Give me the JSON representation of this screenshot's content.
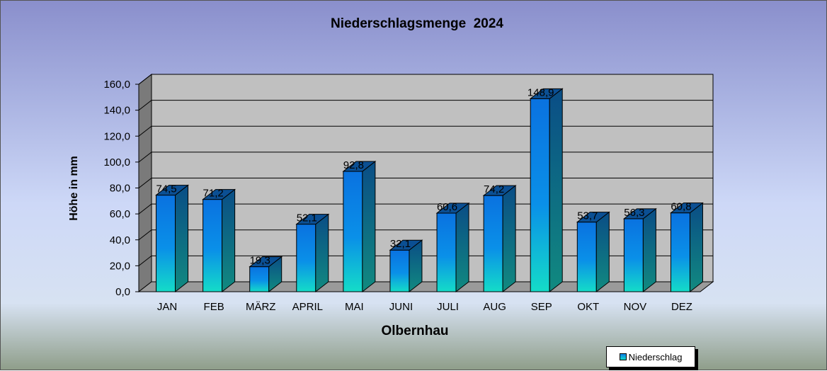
{
  "chart_data": {
    "type": "bar",
    "title": "Niederschlagsmenge  2024",
    "xlabel": "Olbernhau",
    "ylabel": "Höhe in mm",
    "categories": [
      "JAN",
      "FEB",
      "MÄRZ",
      "APRIL",
      "MAI",
      "JUNI",
      "JULI",
      "AUG",
      "SEP",
      "OKT",
      "NOV",
      "DEZ"
    ],
    "series": [
      {
        "name": "Niederschlag",
        "values": [
          74.5,
          71.2,
          19.3,
          52.1,
          92.8,
          32.1,
          60.6,
          74.2,
          148.9,
          53.7,
          56.3,
          60.8
        ],
        "labels": [
          "74,5",
          "71,2",
          "19,3",
          "52,1",
          "92,8",
          "32,1",
          "60,6",
          "74,2",
          "148,9",
          "53,7",
          "56,3",
          "60,8"
        ]
      }
    ],
    "y_ticks": [
      "0,0",
      "20,0",
      "40,0",
      "60,0",
      "80,0",
      "100,0",
      "120,0",
      "140,0",
      "160,0"
    ],
    "ylim": [
      0,
      160
    ],
    "grid": true,
    "legend_position": "bottom-right",
    "colors": {
      "bar_top": "#0a72e0",
      "bar_bottom": "#14dcc8",
      "bar_side": "#0a4d86",
      "bar_cap": "#0b4f93",
      "plot_wall": "#c0c0c0",
      "plot_floor": "#9a9a9a"
    }
  }
}
